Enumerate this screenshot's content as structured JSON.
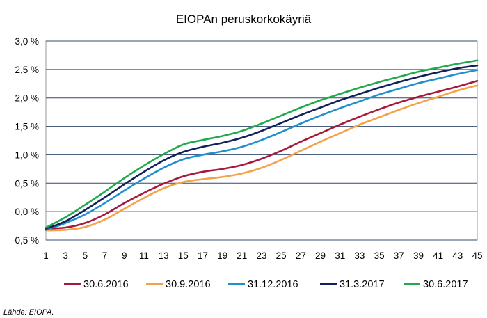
{
  "chart_data": {
    "type": "line",
    "title": "EIOPAn peruskorkokäyriä",
    "source": "Lähde: EIOPA.",
    "ylim": [
      -0.5,
      3.0
    ],
    "yticks": [
      -0.5,
      0.0,
      0.5,
      1.0,
      1.5,
      2.0,
      2.5,
      3.0
    ],
    "ytick_labels": [
      "-0,5 %",
      "0,0 %",
      "0,5 %",
      "1,0 %",
      "1,5 %",
      "2,0 %",
      "2,5 %",
      "3,0 %"
    ],
    "xlim": [
      1,
      45
    ],
    "xtick_labels": [
      "1",
      "3",
      "5",
      "7",
      "9",
      "11",
      "13",
      "15",
      "17",
      "19",
      "21",
      "23",
      "25",
      "27",
      "29",
      "31",
      "33",
      "35",
      "37",
      "39",
      "41",
      "43",
      "45"
    ],
    "grid": true,
    "legend_position": "bottom",
    "series": [
      {
        "name": "30.6.2016",
        "color": "#a4193c",
        "points": [
          [
            1,
            -0.3
          ],
          [
            3,
            -0.28
          ],
          [
            5,
            -0.2
          ],
          [
            7,
            -0.05
          ],
          [
            9,
            0.15
          ],
          [
            11,
            0.33
          ],
          [
            13,
            0.49
          ],
          [
            15,
            0.62
          ],
          [
            17,
            0.7
          ],
          [
            19,
            0.75
          ],
          [
            21,
            0.82
          ],
          [
            23,
            0.93
          ],
          [
            25,
            1.07
          ],
          [
            27,
            1.23
          ],
          [
            29,
            1.38
          ],
          [
            31,
            1.53
          ],
          [
            33,
            1.67
          ],
          [
            35,
            1.8
          ],
          [
            37,
            1.92
          ],
          [
            39,
            2.02
          ],
          [
            41,
            2.11
          ],
          [
            43,
            2.2
          ],
          [
            45,
            2.3
          ]
        ]
      },
      {
        "name": "30.9.2016",
        "color": "#f4a24a",
        "points": [
          [
            1,
            -0.33
          ],
          [
            3,
            -0.32
          ],
          [
            5,
            -0.27
          ],
          [
            7,
            -0.14
          ],
          [
            9,
            0.05
          ],
          [
            11,
            0.24
          ],
          [
            13,
            0.41
          ],
          [
            15,
            0.52
          ],
          [
            17,
            0.57
          ],
          [
            19,
            0.61
          ],
          [
            21,
            0.67
          ],
          [
            23,
            0.77
          ],
          [
            25,
            0.91
          ],
          [
            27,
            1.07
          ],
          [
            29,
            1.23
          ],
          [
            31,
            1.38
          ],
          [
            33,
            1.53
          ],
          [
            35,
            1.66
          ],
          [
            37,
            1.79
          ],
          [
            39,
            1.91
          ],
          [
            41,
            2.02
          ],
          [
            43,
            2.13
          ],
          [
            45,
            2.22
          ]
        ]
      },
      {
        "name": "31.12.2016",
        "color": "#1f8fd0",
        "points": [
          [
            1,
            -0.32
          ],
          [
            3,
            -0.2
          ],
          [
            5,
            -0.05
          ],
          [
            7,
            0.15
          ],
          [
            9,
            0.37
          ],
          [
            11,
            0.58
          ],
          [
            13,
            0.77
          ],
          [
            15,
            0.92
          ],
          [
            17,
            1.0
          ],
          [
            19,
            1.06
          ],
          [
            21,
            1.14
          ],
          [
            23,
            1.26
          ],
          [
            25,
            1.4
          ],
          [
            27,
            1.55
          ],
          [
            29,
            1.69
          ],
          [
            31,
            1.82
          ],
          [
            33,
            1.94
          ],
          [
            35,
            2.06
          ],
          [
            37,
            2.16
          ],
          [
            39,
            2.26
          ],
          [
            41,
            2.34
          ],
          [
            43,
            2.42
          ],
          [
            45,
            2.49
          ]
        ]
      },
      {
        "name": "31.3.2017",
        "color": "#12205a",
        "points": [
          [
            1,
            -0.3
          ],
          [
            3,
            -0.17
          ],
          [
            5,
            0.03
          ],
          [
            7,
            0.25
          ],
          [
            9,
            0.48
          ],
          [
            11,
            0.7
          ],
          [
            13,
            0.9
          ],
          [
            15,
            1.05
          ],
          [
            17,
            1.14
          ],
          [
            19,
            1.21
          ],
          [
            21,
            1.3
          ],
          [
            23,
            1.42
          ],
          [
            25,
            1.56
          ],
          [
            27,
            1.7
          ],
          [
            29,
            1.83
          ],
          [
            31,
            1.96
          ],
          [
            33,
            2.07
          ],
          [
            35,
            2.18
          ],
          [
            37,
            2.28
          ],
          [
            39,
            2.37
          ],
          [
            41,
            2.45
          ],
          [
            43,
            2.52
          ],
          [
            45,
            2.57
          ]
        ]
      },
      {
        "name": "30.6.2017",
        "color": "#1faa4b",
        "points": [
          [
            1,
            -0.28
          ],
          [
            3,
            -0.1
          ],
          [
            5,
            0.12
          ],
          [
            7,
            0.35
          ],
          [
            9,
            0.59
          ],
          [
            11,
            0.81
          ],
          [
            13,
            1.01
          ],
          [
            15,
            1.18
          ],
          [
            17,
            1.26
          ],
          [
            19,
            1.33
          ],
          [
            21,
            1.42
          ],
          [
            23,
            1.55
          ],
          [
            25,
            1.69
          ],
          [
            27,
            1.83
          ],
          [
            29,
            1.96
          ],
          [
            31,
            2.07
          ],
          [
            33,
            2.18
          ],
          [
            35,
            2.28
          ],
          [
            37,
            2.37
          ],
          [
            39,
            2.46
          ],
          [
            41,
            2.53
          ],
          [
            43,
            2.6
          ],
          [
            45,
            2.66
          ]
        ]
      }
    ]
  }
}
